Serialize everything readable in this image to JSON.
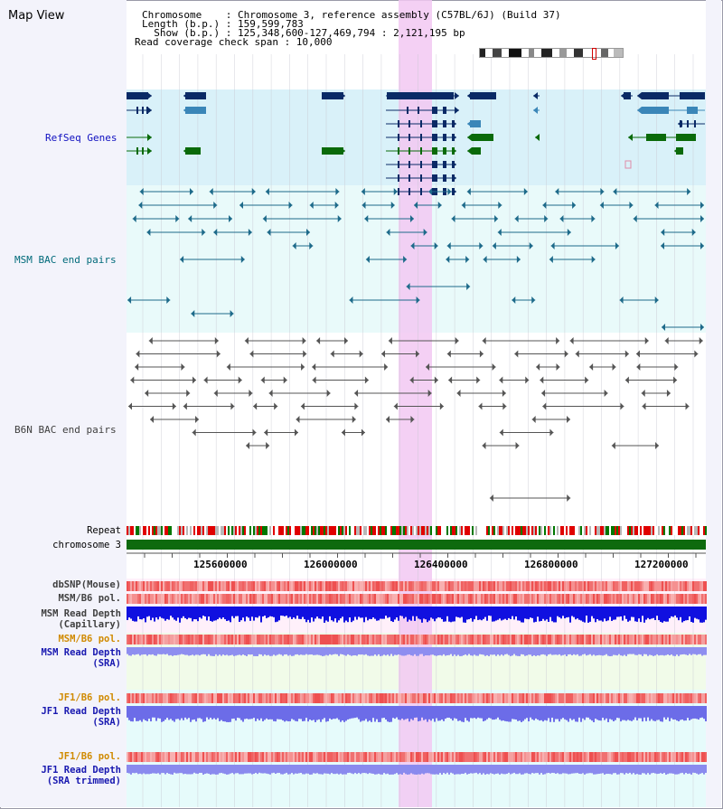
{
  "title": "Map View",
  "header": {
    "line1": "Chromosome    : Chromosome 3, reference assembly (C57BL/6J) (Build 37)",
    "line2": "Length (b.p.) : 159,599,783",
    "line3": "  Show (b.p.) : 125,348,600-127,469,794 : 2,121,195 bp",
    "line4": "Read coverage check span : 10,000"
  },
  "tracks": {
    "refseq": "RefSeq Genes",
    "msm_bac": "MSM BAC end pairs",
    "b6n_bac": "B6N BAC end pairs",
    "repeat": "Repeat",
    "chromosome": "chromosome 3",
    "dbsnp": "dbSNP(Mouse)",
    "msm_b6_pol": "MSM/B6 pol.",
    "msm_depth_cap_1": "MSM Read Depth",
    "msm_depth_cap_2": "(Capillary)",
    "msm_b6_pol_sra": "MSM/B6 pol.",
    "msm_depth_sra_1": "MSM Read Depth",
    "msm_depth_sra_2": "(SRA)",
    "jf1_b6_pol": "JF1/B6 pol.",
    "jf1_depth_sra_1": "JF1 Read Depth",
    "jf1_depth_sra_2": "(SRA)",
    "jf1_b6_pol_trim": "JF1/B6 pol.",
    "jf1_depth_trim_1": "JF1 Read Depth",
    "jf1_depth_trim_2": "(SRA trimmed)"
  },
  "axis": {
    "ticks": [
      "125600000",
      "126000000",
      "126400000",
      "126800000",
      "127200000"
    ]
  },
  "colors": {
    "refseq_label": "#1010c0",
    "msm_label": "#006a7a",
    "b6n_label": "#404040",
    "orange_label": "#d08a00",
    "highlight": "#f2c8f2"
  }
}
